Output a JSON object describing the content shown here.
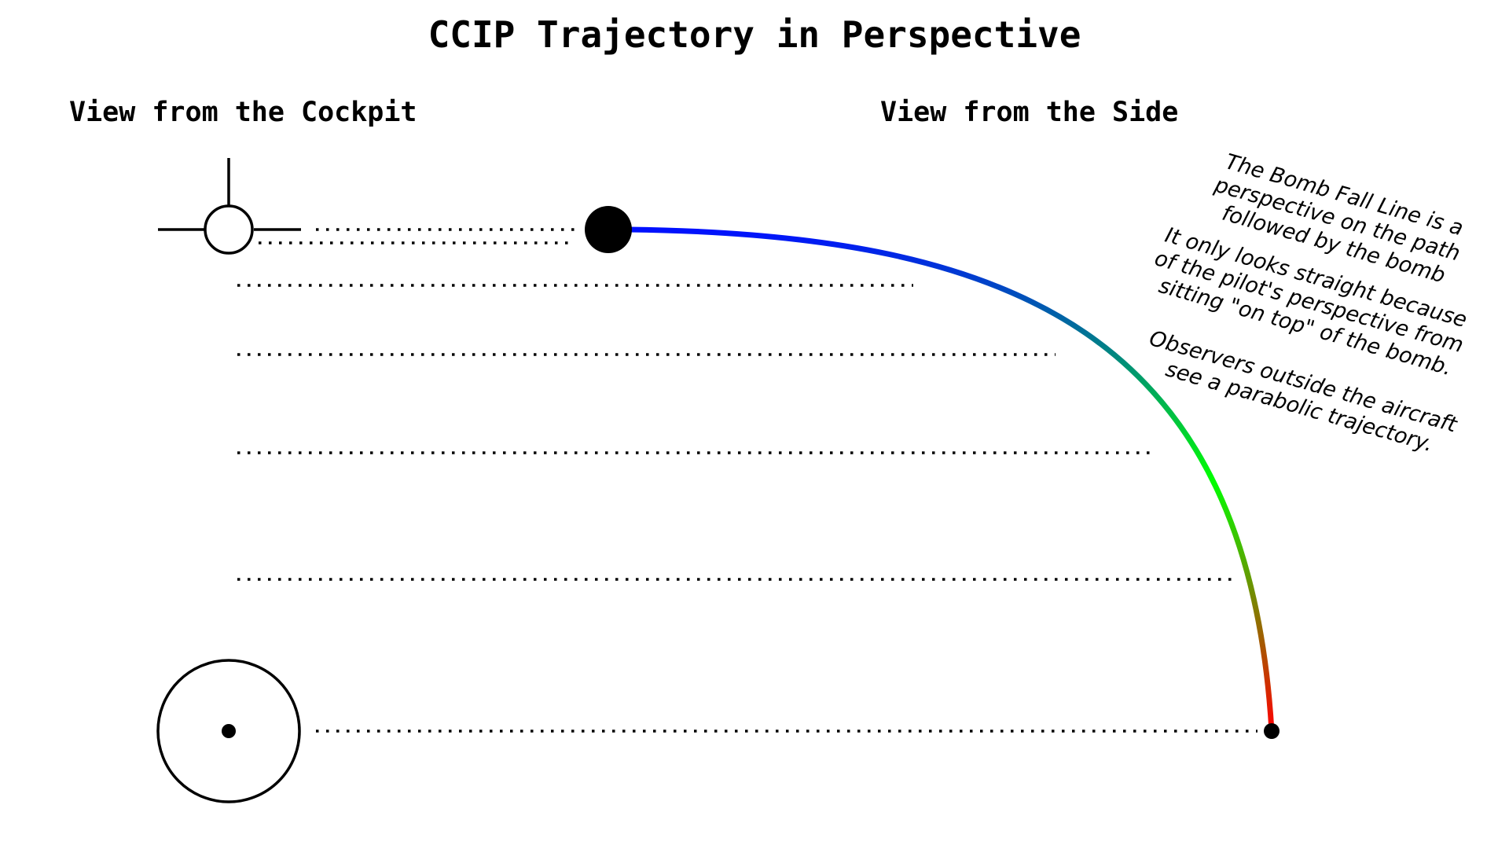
{
  "title": "CCIP Trajectory in Perspective",
  "sections": {
    "cockpit": "View from the Cockpit",
    "side": "View from the Side"
  },
  "notes": [
    [
      "The Bomb Fall Line is a",
      "perspective on the path",
      "followed by the bomb"
    ],
    [
      "It only looks straight because",
      "of the pilot's perspective from",
      "sitting \"on top\" of the bomb."
    ],
    [
      "Observers outside the aircraft",
      "see a parabolic trajectory."
    ]
  ],
  "colors": {
    "start": "#0010ff",
    "mid": "#00ff00",
    "end": "#ff0000",
    "ink": "#000000"
  },
  "icons": {
    "gun_cross": "crosshair-circle-icon",
    "bomb": "filled-circle-icon",
    "impact_reticle": "pipper-reticle-icon"
  }
}
